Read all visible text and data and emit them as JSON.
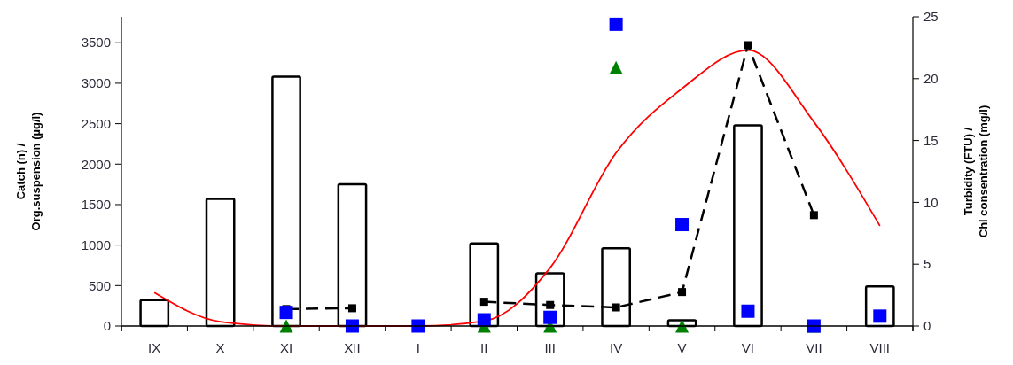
{
  "chart_data": {
    "type": "bar",
    "categories": [
      "IX",
      "X",
      "XI",
      "XII",
      "I",
      "II",
      "III",
      "IV",
      "V",
      "VI",
      "VII",
      "VIII"
    ],
    "ylabel": "Catch (n) / Org.suspension (µg/l)",
    "y2label": "Turbidity (FTU) / Chl consentration (mg/l)",
    "ylim": [
      0,
      3820
    ],
    "yticks": [
      0,
      500,
      1000,
      1500,
      2000,
      2500,
      3000,
      3500
    ],
    "y2lim": [
      0,
      25
    ],
    "y2ticks": [
      0,
      5,
      10,
      15,
      20,
      25
    ],
    "grid": false,
    "series": [
      {
        "color": "#ffffff",
        "values": [
          320,
          1570,
          3080,
          1750,
          null,
          1020,
          650,
          960,
          70,
          2480,
          null,
          490
        ]
      },
      {
        "type": "line",
        "axis": "y2",
        "color": "#ff0000",
        "marker": "none",
        "line_style": "solid",
        "values": [
          2.7,
          0.35,
          0,
          0,
          0,
          0.4,
          4.7,
          14,
          19.2,
          22.3,
          16.5,
          8.1
        ]
      },
      {
        "type": "line",
        "color": "#000000",
        "marker": "square",
        "line_style": "dashed",
        "values": [
          null,
          null,
          210,
          220,
          null,
          300,
          260,
          230,
          420,
          3470,
          1370,
          null
        ]
      },
      {
        "type": "scatter",
        "axis": "y2",
        "color": "#008000",
        "marker": "triangle",
        "values": [
          null,
          null,
          0,
          null,
          null,
          0,
          0,
          20.9,
          0,
          null,
          0,
          null
        ]
      },
      {
        "type": "scatter",
        "axis": "y2",
        "color": "#0000ff",
        "marker": "square",
        "values": [
          null,
          null,
          1.1,
          0,
          0,
          0.5,
          0.7,
          24.4,
          8.2,
          1.2,
          0,
          0.8
        ]
      }
    ]
  }
}
